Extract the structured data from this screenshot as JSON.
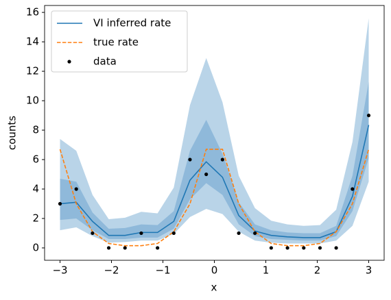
{
  "chart_data": {
    "type": "line",
    "xlabel": "x",
    "ylabel": "counts",
    "x": [
      -3,
      -2.684,
      -2.368,
      -2.053,
      -1.737,
      -1.421,
      -1.105,
      -0.789,
      -0.474,
      -0.158,
      0.158,
      0.474,
      0.789,
      1.105,
      1.421,
      1.737,
      2.053,
      2.368,
      2.684,
      3
    ],
    "bands": [
      {
        "color": "#b9d4e8",
        "lower": [
          1.2,
          1.4,
          0.8,
          0.35,
          0.4,
          0.5,
          0.5,
          0.95,
          2.1,
          2.65,
          2.3,
          1.1,
          0.5,
          0.35,
          0.3,
          0.3,
          0.3,
          0.5,
          1.5,
          4.5
        ],
        "upper": [
          7.4,
          6.6,
          3.6,
          1.95,
          2.05,
          2.45,
          2.35,
          4.1,
          9.7,
          12.9,
          9.9,
          4.9,
          2.7,
          1.85,
          1.6,
          1.5,
          1.55,
          2.6,
          7.2,
          15.6
        ]
      },
      {
        "color": "#8fb9da",
        "lower": [
          1.9,
          2.0,
          1.2,
          0.6,
          0.6,
          0.7,
          0.7,
          1.3,
          3.3,
          4.4,
          3.6,
          1.6,
          0.8,
          0.6,
          0.55,
          0.5,
          0.5,
          0.8,
          2.5,
          6.1
        ],
        "upper": [
          4.7,
          4.5,
          2.4,
          1.3,
          1.35,
          1.6,
          1.55,
          2.5,
          6.6,
          8.7,
          6.4,
          3.1,
          1.6,
          1.2,
          1.05,
          1.0,
          1.0,
          1.5,
          4.9,
          11.3
        ]
      }
    ],
    "series": [
      {
        "name": "VI inferred rate",
        "color": "#1f77b4",
        "style": "solid",
        "values": [
          3.0,
          3.1,
          1.8,
          0.85,
          0.85,
          1.05,
          1.05,
          1.8,
          4.6,
          5.85,
          4.8,
          2.2,
          1.15,
          0.85,
          0.75,
          0.7,
          0.7,
          1.1,
          3.5,
          8.35
        ]
      },
      {
        "name": "true rate",
        "color": "#ff7f0e",
        "style": "dashed",
        "values": [
          6.7,
          3.0,
          1.1,
          0.3,
          0.15,
          0.15,
          0.3,
          1.1,
          3.0,
          6.7,
          6.7,
          3.0,
          1.1,
          0.3,
          0.15,
          0.15,
          0.3,
          1.1,
          3.0,
          6.7
        ]
      },
      {
        "name": "data",
        "color": "#000000",
        "style": "points",
        "values": [
          3,
          4,
          1,
          0,
          0,
          1,
          0,
          1,
          6,
          5,
          6,
          1,
          1,
          0,
          0,
          0,
          0,
          0,
          4,
          9
        ]
      }
    ],
    "xlim": [
      -3.3,
      3.3
    ],
    "xticks": [
      {
        "value": -3,
        "label": "−3"
      },
      {
        "value": -2,
        "label": "−2"
      },
      {
        "value": -1,
        "label": "−1"
      },
      0,
      1,
      2,
      3
    ],
    "ylim": [
      -0.84,
      16.47
    ],
    "yticks": [
      0,
      2,
      4,
      6,
      8,
      10,
      12,
      14,
      16
    ],
    "legend": "upper-left"
  }
}
